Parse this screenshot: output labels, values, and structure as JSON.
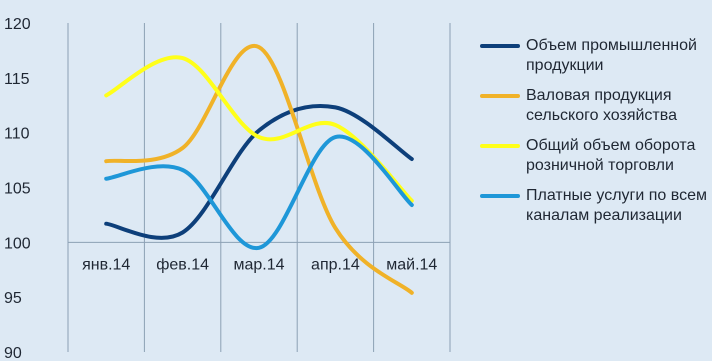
{
  "chart_data": {
    "type": "line",
    "categories": [
      "янв.14",
      "фев.14",
      "мар.14",
      "апр.14",
      "май.14"
    ],
    "ylim": [
      90,
      120
    ],
    "yticks": [
      90,
      95,
      100,
      105,
      110,
      115,
      120
    ],
    "baseline": 100,
    "grid": "vertical",
    "legend_position": "right",
    "series": [
      {
        "name": "Объем промышленной продукции",
        "color": "#0d3f7a",
        "values": [
          101.7,
          100.9,
          110.2,
          112.3,
          107.6
        ]
      },
      {
        "name": "Валовая продукция сельского хозяйства",
        "color": "#f0b228",
        "values": [
          107.4,
          108.6,
          117.8,
          101.3,
          95.4
        ]
      },
      {
        "name": "Общий объем оборота розничной торговли",
        "color": "#ffff19",
        "values": [
          113.4,
          116.8,
          109.6,
          110.7,
          103.8
        ]
      },
      {
        "name": "Платные услуги по всем каналам реализации",
        "color": "#1e97d8",
        "values": [
          105.8,
          106.6,
          99.5,
          109.6,
          103.4
        ]
      }
    ]
  }
}
